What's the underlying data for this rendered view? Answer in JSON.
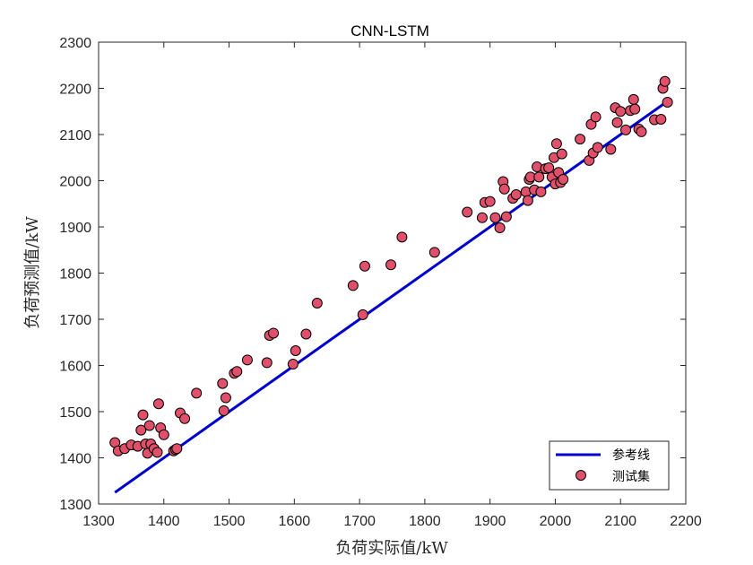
{
  "chart_data": {
    "type": "scatter",
    "title": "CNN-LSTM",
    "xlabel": "负荷实际值/kW",
    "ylabel": "负荷预测值/kW",
    "xlim": [
      1300,
      2200
    ],
    "ylim": [
      1300,
      2300
    ],
    "xticks": [
      "1300",
      "1400",
      "1500",
      "1600",
      "1700",
      "1800",
      "1900",
      "2000",
      "2100",
      "2200"
    ],
    "yticks": [
      "1300",
      "1400",
      "1500",
      "1600",
      "1700",
      "1800",
      "1900",
      "2000",
      "2100",
      "2200",
      "2300"
    ],
    "legend": {
      "position": "bottom-right",
      "items": [
        "参考线",
        "测试集"
      ]
    },
    "colors": {
      "line": "#0000CD",
      "marker_fill": "#E0506A",
      "marker_edge": "#000000"
    },
    "series": [
      {
        "name": "参考线",
        "kind": "line",
        "x": [
          1325,
          2175
        ],
        "y": [
          1325,
          2175
        ]
      },
      {
        "name": "测试集",
        "kind": "scatter",
        "x": [
          1325,
          1330,
          1340,
          1350,
          1360,
          1365,
          1368,
          1372,
          1375,
          1378,
          1380,
          1385,
          1390,
          1392,
          1395,
          1400,
          1415,
          1418,
          1420,
          1425,
          1432,
          1450,
          1490,
          1492,
          1495,
          1508,
          1512,
          1528,
          1558,
          1562,
          1568,
          1598,
          1602,
          1618,
          1635,
          1690,
          1705,
          1708,
          1748,
          1765,
          1815,
          1865,
          1888,
          1892,
          1900,
          1908,
          1915,
          1920,
          1922,
          1925,
          1935,
          1940,
          1955,
          1958,
          1960,
          1962,
          1968,
          1972,
          1975,
          1978,
          1985,
          1990,
          1995,
          1998,
          2000,
          2002,
          2005,
          2008,
          2010,
          2012,
          2038,
          2052,
          2055,
          2058,
          2062,
          2065,
          2085,
          2092,
          2095,
          2100,
          2108,
          2115,
          2120,
          2122,
          2128,
          2132,
          2152,
          2162,
          2165,
          2168,
          2172
        ],
        "y": [
          1433,
          1415,
          1420,
          1428,
          1425,
          1460,
          1493,
          1430,
          1410,
          1470,
          1430,
          1420,
          1412,
          1517,
          1465,
          1450,
          1415,
          1418,
          1420,
          1497,
          1485,
          1540,
          1561,
          1502,
          1530,
          1583,
          1587,
          1612,
          1606,
          1665,
          1670,
          1603,
          1632,
          1668,
          1735,
          1773,
          1710,
          1815,
          1818,
          1878,
          1845,
          1932,
          1920,
          1953,
          1955,
          1920,
          1898,
          1998,
          1982,
          1922,
          1962,
          1970,
          1976,
          1957,
          2003,
          2008,
          1980,
          2030,
          2008,
          1976,
          2026,
          2028,
          2008,
          2050,
          1993,
          2080,
          2018,
          1996,
          2058,
          2003,
          2090,
          2044,
          2122,
          2060,
          2138,
          2072,
          2068,
          2158,
          2126,
          2150,
          2110,
          2152,
          2176,
          2155,
          2112,
          2106,
          2132,
          2133,
          2200,
          2215,
          2170
        ]
      }
    ]
  }
}
